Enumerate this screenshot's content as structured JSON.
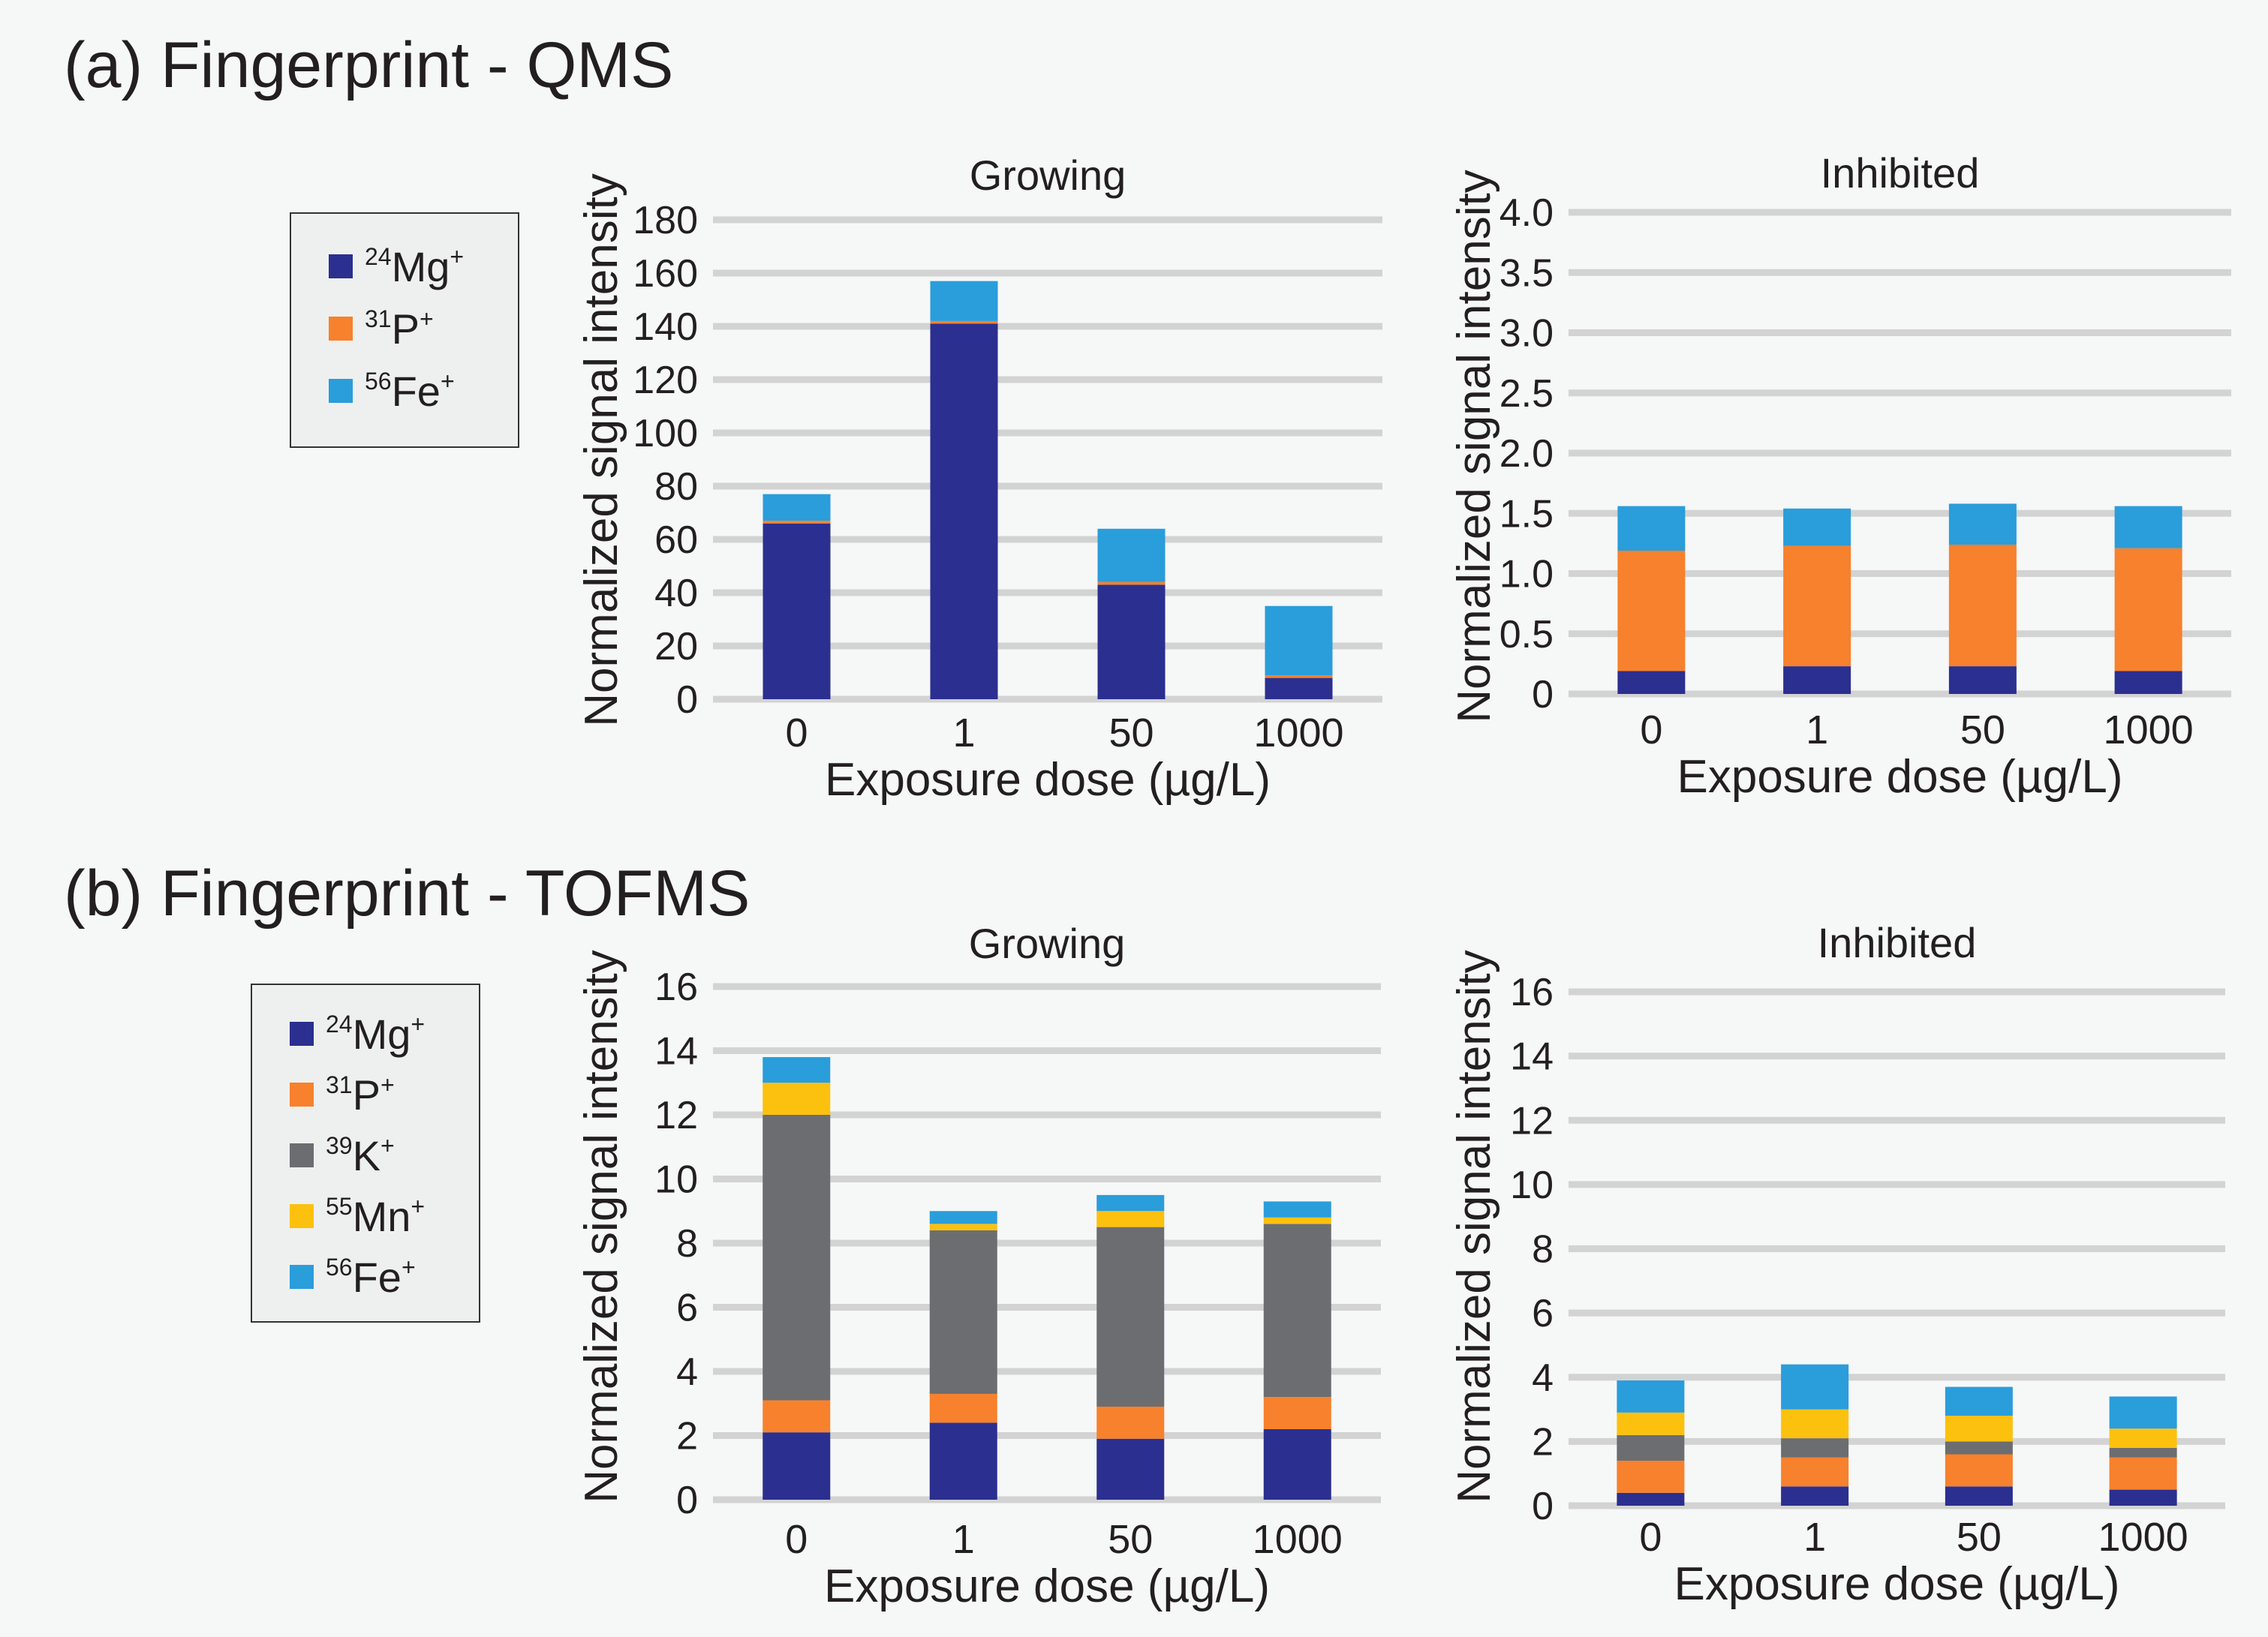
{
  "sections": [
    {
      "title": "(a) Fingerprint - QMS",
      "legend": [
        {
          "isotope": "24",
          "element": "Mg",
          "charge": "+",
          "color": "#2b2f8f"
        },
        {
          "isotope": "31",
          "element": "P",
          "charge": "+",
          "color": "#f7812c"
        },
        {
          "isotope": "56",
          "element": "Fe",
          "charge": "+",
          "color": "#2a9ddb"
        }
      ]
    },
    {
      "title": "(b) Fingerprint - TOFMS",
      "legend": [
        {
          "isotope": "24",
          "element": "Mg",
          "charge": "+",
          "color": "#2b2f8f"
        },
        {
          "isotope": "31",
          "element": "P",
          "charge": "+",
          "color": "#f7812c"
        },
        {
          "isotope": "39",
          "element": "K",
          "charge": "+",
          "color": "#6c6d70"
        },
        {
          "isotope": "55",
          "element": "Mn",
          "charge": "+",
          "color": "#fcc10f"
        },
        {
          "isotope": "56",
          "element": "Fe",
          "charge": "+",
          "color": "#2a9ddb"
        }
      ]
    }
  ],
  "chart_data": [
    {
      "type": "bar",
      "stacked": true,
      "panel": "(a) Fingerprint - QMS",
      "title": "Growing",
      "xlabel": "Exposure dose (µg/L)",
      "ylabel": "Normalized signal intensity",
      "categories": [
        "0",
        "1",
        "50",
        "1000"
      ],
      "ylim": [
        0,
        180
      ],
      "yticks": [
        "0",
        "20",
        "40",
        "60",
        "80",
        "100",
        "120",
        "140",
        "160",
        "180"
      ],
      "series": [
        {
          "name": "24Mg+",
          "color": "#2b2f8f",
          "values": [
            66,
            141,
            43,
            8
          ]
        },
        {
          "name": "31P+",
          "color": "#f7812c",
          "values": [
            1,
            1,
            1,
            1
          ]
        },
        {
          "name": "56Fe+",
          "color": "#2a9ddb",
          "values": [
            10,
            15,
            20,
            26
          ]
        }
      ]
    },
    {
      "type": "bar",
      "stacked": true,
      "panel": "(a) Fingerprint - QMS",
      "title": "Inhibited",
      "xlabel": "Exposure dose (µg/L)",
      "ylabel": "Normalized signal intensity",
      "categories": [
        "0",
        "1",
        "50",
        "1000"
      ],
      "ylim": [
        0,
        4.0
      ],
      "yticks": [
        "0",
        "0.5",
        "1.0",
        "1.5",
        "2.0",
        "2.5",
        "3.0",
        "3.5",
        "4.0"
      ],
      "series": [
        {
          "name": "24Mg+",
          "color": "#2b2f8f",
          "values": [
            0.19,
            0.23,
            0.23,
            0.19
          ]
        },
        {
          "name": "31P+",
          "color": "#f7812c",
          "values": [
            1.0,
            1.0,
            1.01,
            1.02
          ]
        },
        {
          "name": "56Fe+",
          "color": "#2a9ddb",
          "values": [
            0.37,
            0.31,
            0.34,
            0.35
          ]
        }
      ]
    },
    {
      "type": "bar",
      "stacked": true,
      "panel": "(b) Fingerprint - TOFMS",
      "title": "Growing",
      "xlabel": "Exposure dose (µg/L)",
      "ylabel": "Normalized signal intensity",
      "categories": [
        "0",
        "1",
        "50",
        "1000"
      ],
      "ylim": [
        0,
        16
      ],
      "yticks": [
        "0",
        "2",
        "4",
        "6",
        "8",
        "10",
        "12",
        "14",
        "16"
      ],
      "series": [
        {
          "name": "24Mg+",
          "color": "#2b2f8f",
          "values": [
            2.1,
            2.4,
            1.9,
            2.2
          ]
        },
        {
          "name": "31P+",
          "color": "#f7812c",
          "values": [
            1.0,
            0.9,
            1.0,
            1.0
          ]
        },
        {
          "name": "39K+",
          "color": "#6c6d70",
          "values": [
            8.9,
            5.1,
            5.6,
            5.4
          ]
        },
        {
          "name": "55Mn+",
          "color": "#fcc10f",
          "values": [
            1.0,
            0.2,
            0.5,
            0.2
          ]
        },
        {
          "name": "56Fe+",
          "color": "#2a9ddb",
          "values": [
            0.8,
            0.4,
            0.5,
            0.5
          ]
        }
      ]
    },
    {
      "type": "bar",
      "stacked": true,
      "panel": "(b) Fingerprint - TOFMS",
      "title": "Inhibited",
      "xlabel": "Exposure dose (µg/L)",
      "ylabel": "Normalized signal intensity",
      "categories": [
        "0",
        "1",
        "50",
        "1000"
      ],
      "ylim": [
        0,
        16
      ],
      "yticks": [
        "0",
        "2",
        "4",
        "6",
        "8",
        "10",
        "12",
        "14",
        "16"
      ],
      "series": [
        {
          "name": "24Mg+",
          "color": "#2b2f8f",
          "values": [
            0.4,
            0.6,
            0.6,
            0.5
          ]
        },
        {
          "name": "31P+",
          "color": "#f7812c",
          "values": [
            1.0,
            0.9,
            1.0,
            1.0
          ]
        },
        {
          "name": "39K+",
          "color": "#6c6d70",
          "values": [
            0.8,
            0.6,
            0.4,
            0.3
          ]
        },
        {
          "name": "55Mn+",
          "color": "#fcc10f",
          "values": [
            0.7,
            0.9,
            0.8,
            0.6
          ]
        },
        {
          "name": "56Fe+",
          "color": "#2a9ddb",
          "values": [
            1.0,
            1.4,
            0.9,
            1.0
          ]
        }
      ]
    }
  ]
}
